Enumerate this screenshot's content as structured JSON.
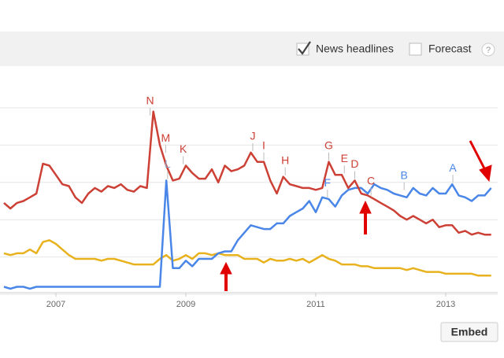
{
  "toolbar": {
    "news_headlines": "News headlines",
    "news_headlines_checked": true,
    "forecast": "Forecast",
    "forecast_checked": false,
    "help": "?"
  },
  "embed": "Embed",
  "chart_data": {
    "type": "line",
    "x": [
      2006.2,
      2006.3,
      2006.4,
      2006.5,
      2006.6,
      2006.7,
      2006.8,
      2006.9,
      2007.0,
      2007.1,
      2007.2,
      2007.3,
      2007.4,
      2007.5,
      2007.6,
      2007.7,
      2007.8,
      2007.9,
      2008.0,
      2008.1,
      2008.2,
      2008.3,
      2008.4,
      2008.5,
      2008.6,
      2008.7,
      2008.8,
      2008.9,
      2009.0,
      2009.1,
      2009.2,
      2009.3,
      2009.4,
      2009.5,
      2009.6,
      2009.7,
      2009.8,
      2009.9,
      2010.0,
      2010.1,
      2010.2,
      2010.3,
      2010.4,
      2010.5,
      2010.6,
      2010.7,
      2010.8,
      2010.9,
      2011.0,
      2011.1,
      2011.2,
      2011.3,
      2011.4,
      2011.5,
      2011.6,
      2011.7,
      2011.8,
      2011.9,
      2012.0,
      2012.1,
      2012.2,
      2012.3,
      2012.4,
      2012.5,
      2012.6,
      2012.7,
      2012.8,
      2012.9,
      2013.0,
      2013.1,
      2013.2,
      2013.3,
      2013.4,
      2013.5,
      2013.6,
      2013.7
    ],
    "series": [
      {
        "color": "#cc4035",
        "values": [
          49,
          46,
          49,
          50,
          52,
          54,
          70,
          69,
          64,
          59,
          58,
          52,
          49,
          54,
          57,
          55,
          58,
          57,
          59,
          56,
          55,
          58,
          57,
          98,
          80,
          69,
          61,
          62,
          69,
          65,
          62,
          62,
          67,
          60,
          69,
          66,
          67,
          69,
          76,
          71,
          71,
          61,
          54,
          63,
          59,
          58,
          57,
          57,
          56,
          57,
          71,
          64,
          64,
          57,
          61,
          54,
          53,
          51,
          49,
          47,
          45,
          42,
          40,
          42,
          40,
          38,
          40,
          36,
          37,
          37,
          33,
          34,
          32,
          33,
          32,
          32
        ]
      },
      {
        "color": "#4a86e8",
        "values": [
          4,
          3,
          4,
          4,
          3,
          4,
          4,
          4,
          4,
          4,
          4,
          4,
          4,
          4,
          4,
          4,
          4,
          4,
          4,
          4,
          4,
          4,
          4,
          4,
          4,
          61,
          14,
          14,
          18,
          15,
          19,
          19,
          19,
          22,
          23,
          23,
          29,
          33,
          37,
          36,
          35,
          35,
          38,
          38,
          42,
          44,
          46,
          50,
          44,
          52,
          51,
          47,
          53,
          56,
          57,
          57,
          54,
          59,
          57,
          56,
          54,
          53,
          52,
          57,
          54,
          53,
          57,
          54,
          54,
          59,
          53,
          52,
          50,
          53,
          53,
          57
        ]
      },
      {
        "color": "#e8b21f",
        "values": [
          22,
          21,
          22,
          22,
          24,
          22,
          28,
          29,
          27,
          24,
          21,
          19,
          19,
          19,
          19,
          18,
          19,
          19,
          18,
          17,
          16,
          16,
          16,
          16,
          19,
          21,
          18,
          19,
          21,
          19,
          22,
          22,
          21,
          22,
          21,
          21,
          21,
          19,
          19,
          19,
          17,
          19,
          18,
          18,
          19,
          18,
          19,
          17,
          19,
          21,
          19,
          18,
          16,
          16,
          16,
          15,
          15,
          14,
          14,
          14,
          14,
          14,
          13,
          14,
          13,
          12,
          12,
          12,
          11,
          11,
          11,
          11,
          11,
          10,
          10,
          10
        ]
      }
    ],
    "annotations": [
      {
        "label": "N",
        "x": 2008.45,
        "y": 95,
        "color": "#cc4035"
      },
      {
        "label": "M",
        "x": 2008.69,
        "y": 75,
        "color": "#cc4035"
      },
      {
        "label": "L",
        "x": 2008.72,
        "y": 61,
        "color": "#8fa7c9"
      },
      {
        "label": "K",
        "x": 2008.96,
        "y": 69,
        "color": "#cc4035"
      },
      {
        "label": "J",
        "x": 2010.03,
        "y": 76,
        "color": "#cc4035"
      },
      {
        "label": "I",
        "x": 2010.2,
        "y": 71,
        "color": "#cc4035"
      },
      {
        "label": "H",
        "x": 2010.53,
        "y": 63,
        "color": "#cc4035"
      },
      {
        "label": "G",
        "x": 2011.2,
        "y": 71,
        "color": "#cc4035"
      },
      {
        "label": "F",
        "x": 2011.18,
        "y": 51,
        "color": "#4a86e8"
      },
      {
        "label": "E",
        "x": 2011.44,
        "y": 64,
        "color": "#cc4035"
      },
      {
        "label": "D",
        "x": 2011.6,
        "y": 61,
        "color": "#cc4035"
      },
      {
        "label": "C",
        "x": 2011.85,
        "y": 52,
        "color": "#cc4035"
      },
      {
        "label": "B",
        "x": 2012.36,
        "y": 55,
        "color": "#4a86e8"
      },
      {
        "label": "A",
        "x": 2013.11,
        "y": 59,
        "color": "#4a86e8"
      }
    ],
    "xlim": [
      2006.14,
      2013.8
    ],
    "xticks": [
      2007,
      2009,
      2011,
      2013
    ],
    "ylim": [
      0,
      100
    ],
    "yticks": [
      0,
      20,
      40,
      60,
      80,
      100
    ],
    "grid": true
  }
}
